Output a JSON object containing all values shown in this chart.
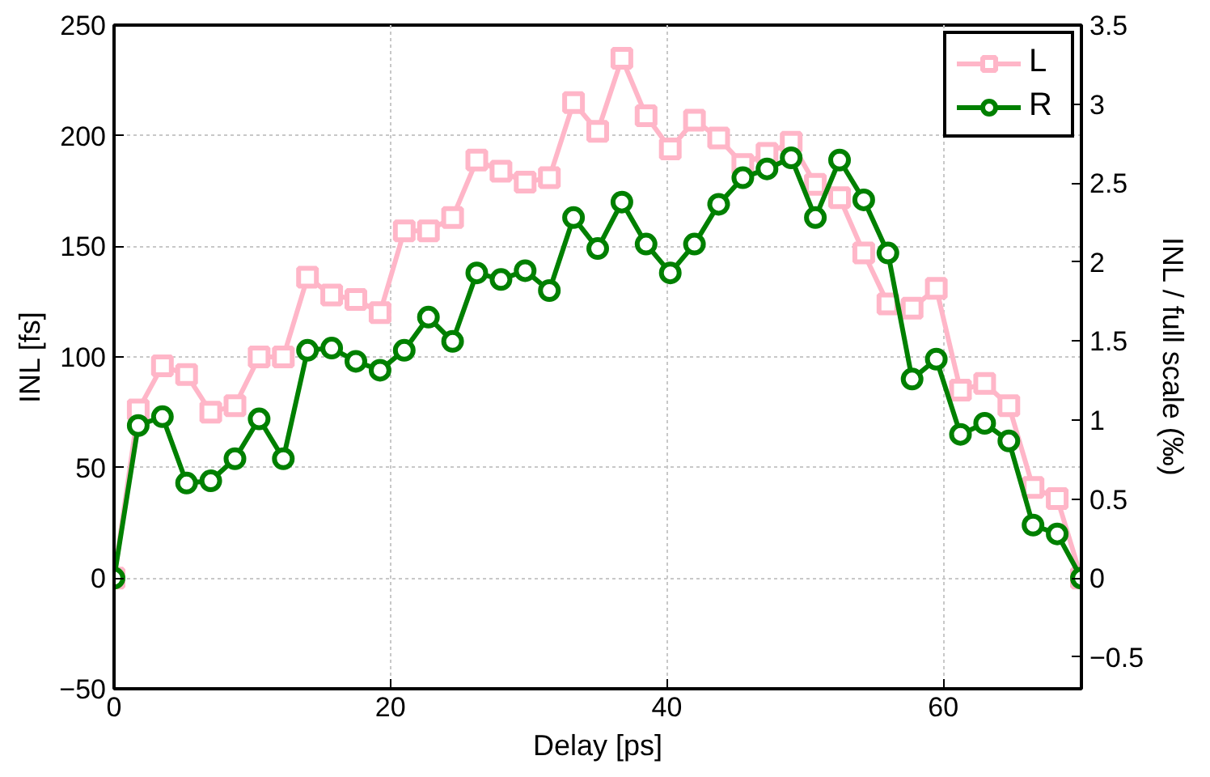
{
  "chart_data": {
    "type": "line",
    "xlabel": "Delay [ps]",
    "ylabel": "INL [fs]",
    "y2label": "INL / full scale (‰)",
    "x": [
      0,
      1.75,
      3.5,
      5.25,
      7,
      8.75,
      10.5,
      12.25,
      14,
      15.75,
      17.5,
      19.25,
      21,
      22.75,
      24.5,
      26.25,
      28,
      29.75,
      31.5,
      33.25,
      35,
      36.75,
      38.5,
      40.25,
      42,
      43.75,
      45.5,
      47.25,
      49,
      50.75,
      52.5,
      54.25,
      56,
      57.75,
      59.5,
      61.25,
      63,
      64.75,
      66.5,
      68.25,
      70
    ],
    "series": [
      {
        "name": "L",
        "color": "#ffb6c8",
        "marker": "square",
        "values": [
          0,
          76,
          96,
          92,
          75,
          78,
          100,
          100,
          136,
          128,
          126,
          120,
          157,
          157,
          163,
          189,
          184,
          179,
          181,
          215,
          202,
          235,
          209,
          194,
          207,
          199,
          187,
          192,
          197,
          178,
          172,
          147,
          124,
          122,
          131,
          85,
          88,
          78,
          41,
          36,
          0
        ]
      },
      {
        "name": "R",
        "color": "#008000",
        "marker": "circle",
        "values": [
          0,
          69,
          73,
          43,
          44,
          54,
          72,
          54,
          103,
          104,
          98,
          94,
          103,
          118,
          107,
          138,
          135,
          139,
          130,
          163,
          149,
          170,
          151,
          138,
          151,
          169,
          181,
          185,
          190,
          163,
          189,
          171,
          147,
          90,
          99,
          65,
          70,
          62,
          24,
          20,
          0
        ]
      }
    ],
    "xlim": [
      0,
      70
    ],
    "xticks": [
      0,
      20,
      40,
      60
    ],
    "ylim": [
      -50,
      250
    ],
    "yticks": [
      -50,
      0,
      50,
      100,
      150,
      200,
      250
    ],
    "y2lim": [
      -0.7,
      3.5
    ],
    "y2ticks": [
      -0.5,
      0,
      0.5,
      1,
      1.5,
      2,
      2.5,
      3,
      3.5
    ],
    "grid": true,
    "legend": "top right",
    "line_style": "solid"
  }
}
